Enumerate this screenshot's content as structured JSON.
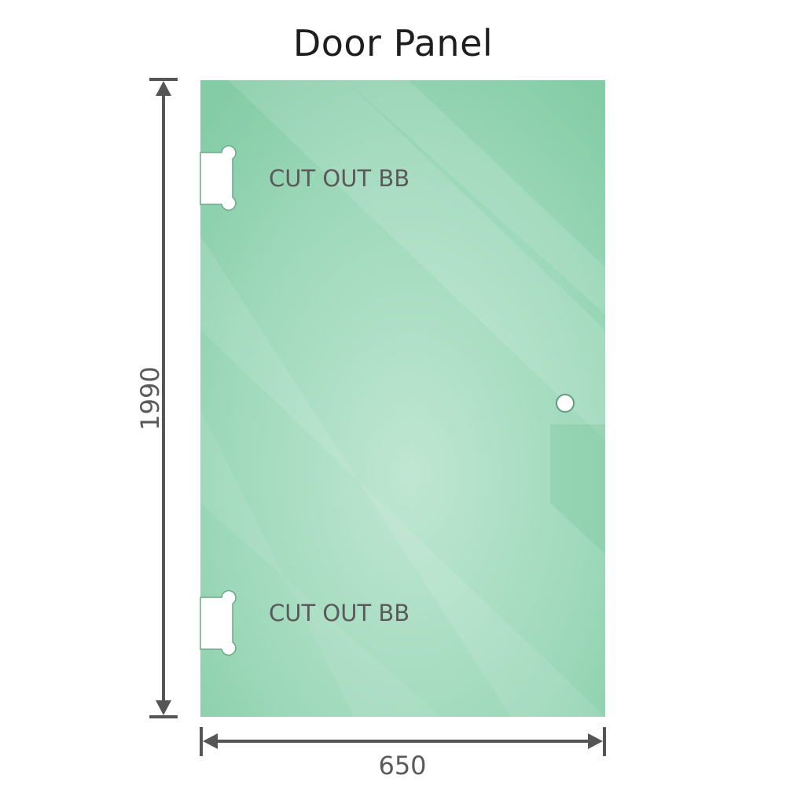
{
  "title": "Door Panel",
  "dimensions": {
    "height": "1990",
    "width": "650"
  },
  "cutouts": [
    {
      "label": "CUT OUT BB"
    },
    {
      "label": "CUT OUT BB"
    }
  ],
  "colors": {
    "glass": "#86cfa8",
    "glass_light": "#bde6d0",
    "dimension_line": "#555555",
    "label_text": "#5a5a5a"
  }
}
